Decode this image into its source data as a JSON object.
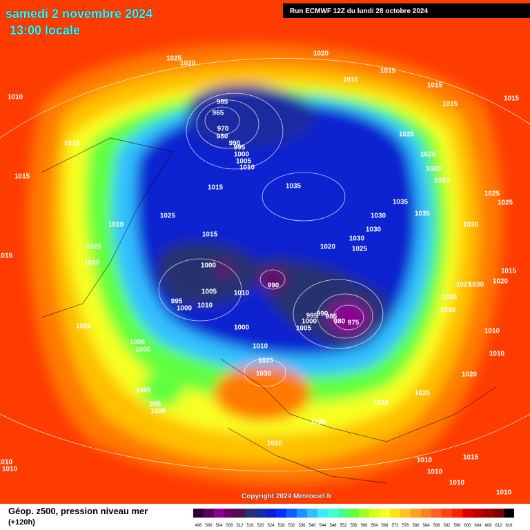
{
  "header": {
    "date": "samedi 2 novembre 2024",
    "time": "13:00 locale",
    "run": "Run ECMWF 12Z du lundi 28 octobre 2024"
  },
  "footer": {
    "field": "Géop. z500, pression niveau mer",
    "lead": "(+120h)",
    "copyright": "Copyright 2024 Meteociel.fr"
  },
  "legend": {
    "levels": [
      496,
      500,
      504,
      508,
      512,
      516,
      520,
      524,
      528,
      532,
      536,
      540,
      544,
      548,
      552,
      556,
      560,
      564,
      568,
      572,
      576,
      580,
      584,
      588,
      592,
      596,
      600,
      604,
      608,
      612,
      616
    ],
    "colors": [
      "#2b0035",
      "#5c0060",
      "#8a0090",
      "#6a006a",
      "#4a1050",
      "#283070",
      "#1a2ca0",
      "#0a20d0",
      "#0030ff",
      "#1060ff",
      "#2090ff",
      "#30c0ff",
      "#40e8ff",
      "#40ffd0",
      "#40ff90",
      "#60ff40",
      "#a0ff20",
      "#d0ff20",
      "#f8ff20",
      "#ffe020",
      "#ffc020",
      "#ffa020",
      "#ff8020",
      "#ff6020",
      "#ff4010",
      "#ff2000",
      "#e00000",
      "#c00000",
      "#a00000",
      "#800000",
      "#000000"
    ]
  },
  "isobar_labels": [
    "985",
    "965",
    "970",
    "980",
    "990",
    "995",
    "1000",
    "1005",
    "1010",
    "1015",
    "1035",
    "1030",
    "1035",
    "1035",
    "1030",
    "1030",
    "1025",
    "1020",
    "1015",
    "1025",
    "1010",
    "1010",
    "1015",
    "1010",
    "1025",
    "1020",
    "1020",
    "1010",
    "1015",
    "1015",
    "1015",
    "1015",
    "1025",
    "1020",
    "1020",
    "1020",
    "1025",
    "1025",
    "1030",
    "1015",
    "1020",
    "1021",
    "1030",
    "1030",
    "1030",
    "1010",
    "1010",
    "1020",
    "1020",
    "1015",
    "1020",
    "1020",
    "1010",
    "1015",
    "1010",
    "1010",
    "1010",
    "1000",
    "990",
    "980",
    "975",
    "985",
    "990",
    "995",
    "1000",
    "1005",
    "1000",
    "1010",
    "1005",
    "1010",
    "995",
    "1000",
    "1020",
    "1005",
    "1000",
    "1010",
    "1025",
    "1030",
    "1005",
    "995",
    "1000",
    "1025",
    "1030",
    "1015",
    "1010",
    "1010"
  ]
}
